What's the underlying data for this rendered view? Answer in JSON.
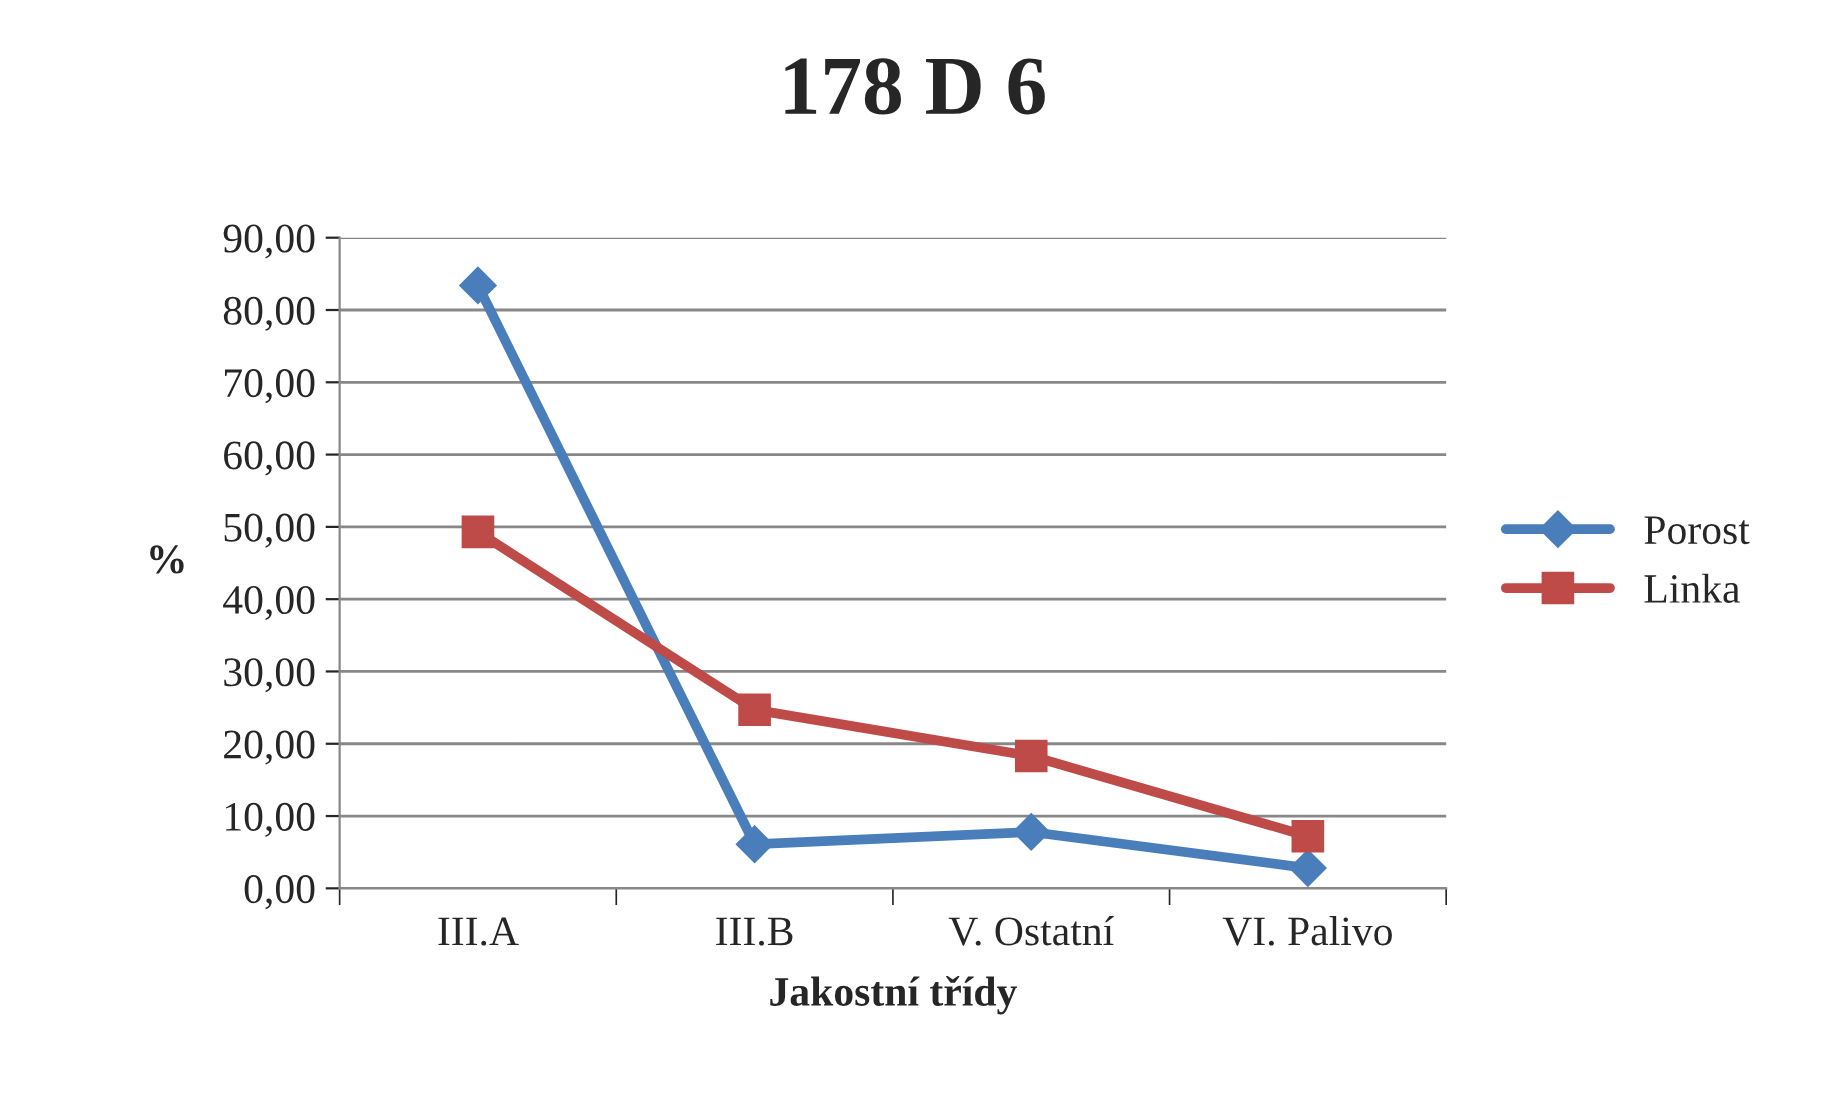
{
  "chart_data": {
    "type": "line",
    "title": "178 D 6",
    "xlabel": "Jakostní třídy",
    "ylabel": "%",
    "categories": [
      "III.A",
      "III.B",
      "V. Ostatní",
      "VI. Palivo"
    ],
    "series": [
      {
        "name": "Porost",
        "color": "#4a7ebb",
        "marker": "diamond",
        "values": [
          83.4,
          6.1,
          7.8,
          2.8
        ]
      },
      {
        "name": "Linka",
        "color": "#be4b48",
        "marker": "square",
        "values": [
          49.3,
          24.7,
          18.3,
          7.2
        ]
      }
    ],
    "ylim": [
      0,
      90
    ],
    "yticks": [
      {
        "value": 0,
        "label": "0,00"
      },
      {
        "value": 10,
        "label": "10,00"
      },
      {
        "value": 20,
        "label": "20,00"
      },
      {
        "value": 30,
        "label": "30,00"
      },
      {
        "value": 40,
        "label": "40,00"
      },
      {
        "value": 50,
        "label": "50,00"
      },
      {
        "value": 60,
        "label": "60,00"
      },
      {
        "value": 70,
        "label": "70,00"
      },
      {
        "value": 80,
        "label": "80,00"
      },
      {
        "value": 90,
        "label": "90,00"
      }
    ],
    "grid": "y",
    "legend": "right",
    "line_style": "solid"
  }
}
